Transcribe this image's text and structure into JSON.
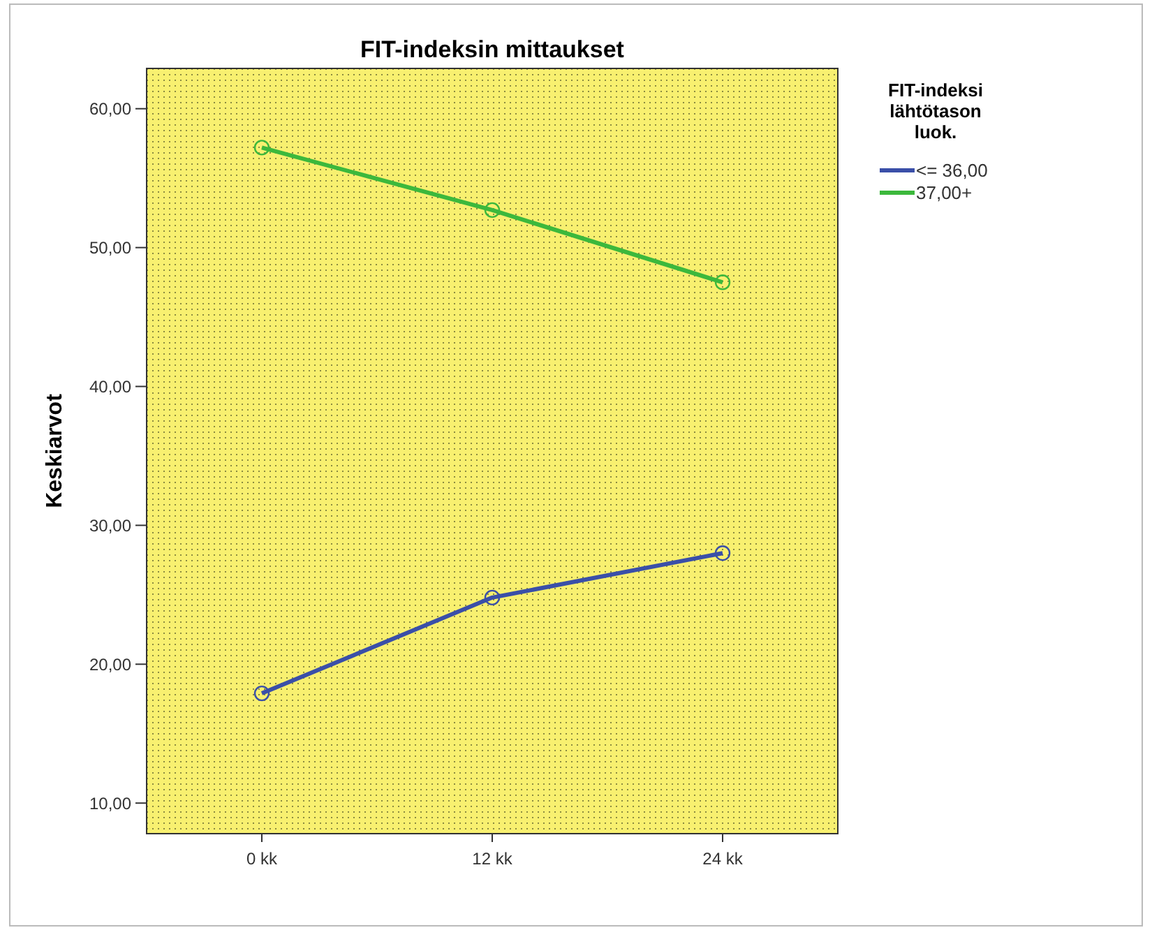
{
  "chart_data": {
    "type": "line",
    "title": "FIT-indeksin mittaukset",
    "ylabel": "Keskiarvot",
    "legend_title": "FIT-indeksi lähtötason luok.",
    "categories": [
      "0 kk",
      "12 kk",
      "24 kk"
    ],
    "series": [
      {
        "name": "<= 36,00",
        "color": "#3a4fa8",
        "values": [
          17.9,
          24.8,
          28.0
        ]
      },
      {
        "name": "37,00+",
        "color": "#3cb83c",
        "values": [
          57.2,
          52.7,
          47.5
        ]
      }
    ],
    "ylim": [
      7.8,
      62.9
    ],
    "yticks": [
      {
        "value": 10,
        "label": "10,00"
      },
      {
        "value": 20,
        "label": "20,00"
      },
      {
        "value": 30,
        "label": "30,00"
      },
      {
        "value": 40,
        "label": "40,00"
      },
      {
        "value": 50,
        "label": "50,00"
      },
      {
        "value": 60,
        "label": "60,00"
      }
    ],
    "grid": false,
    "legend": "top right",
    "marker": "circle",
    "line_style": "solid"
  }
}
